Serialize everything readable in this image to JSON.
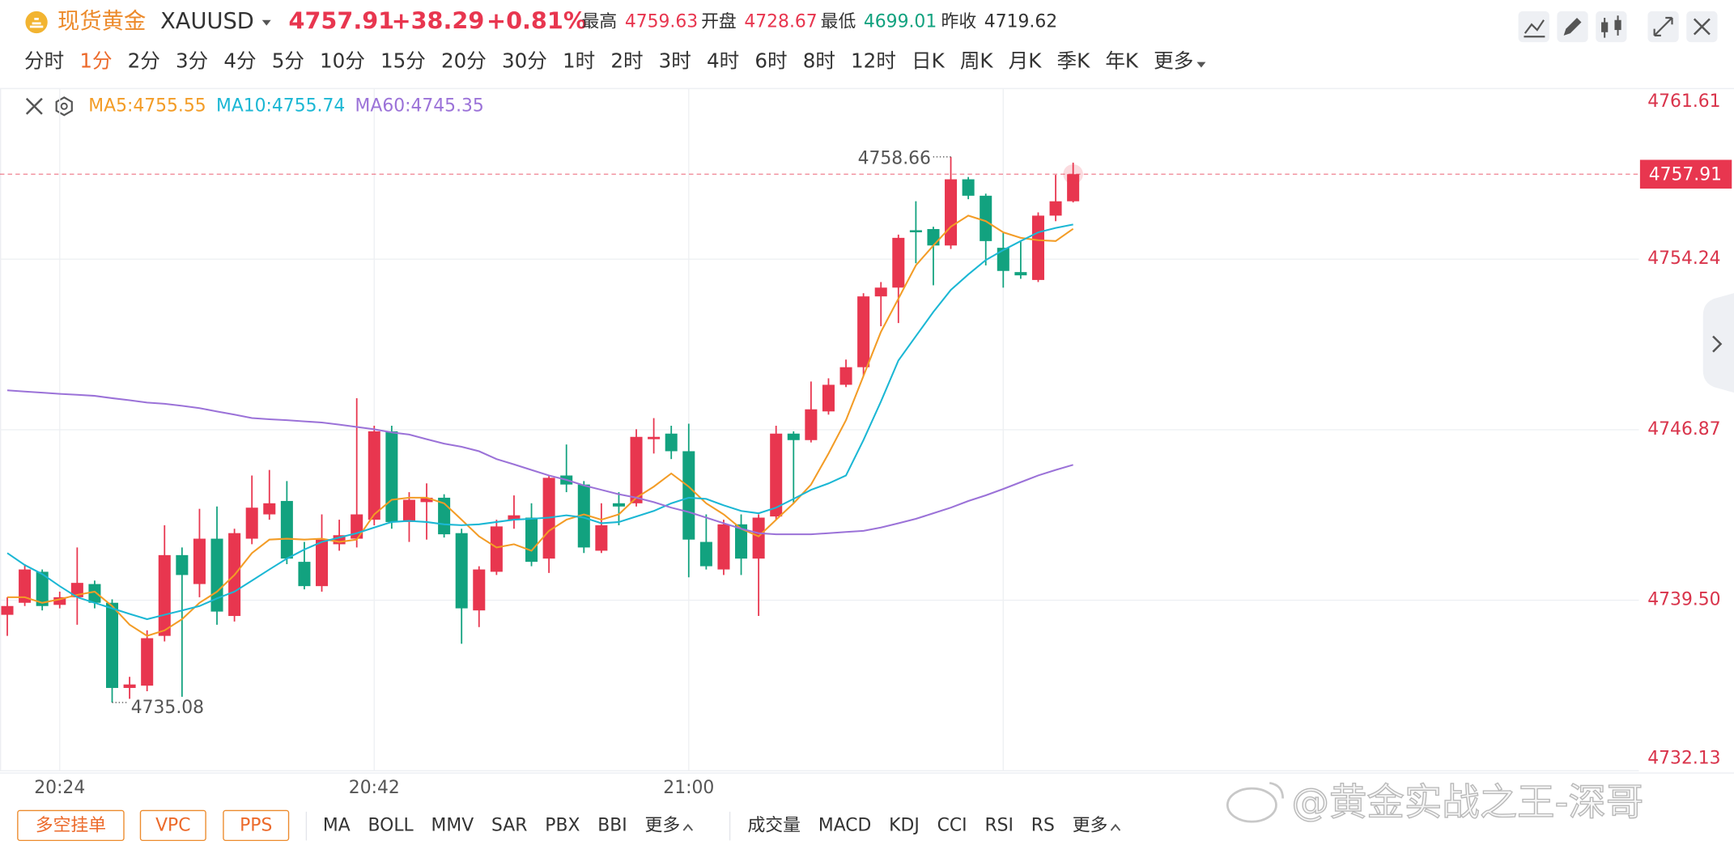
{
  "header": {
    "name": "现货黄金",
    "symbol": "XAUUSD",
    "price": "4757.91",
    "change": "+38.29",
    "change_pct": "+0.81%",
    "stats": [
      {
        "label": "最高",
        "value": "4759.63"
      },
      {
        "label": "开盘",
        "value": "4728.67"
      },
      {
        "label": "最低",
        "value": "4699.01"
      },
      {
        "label": "昨收",
        "value": "4719.62"
      }
    ]
  },
  "periods": [
    "分时",
    "1分",
    "2分",
    "3分",
    "4分",
    "5分",
    "10分",
    "15分",
    "20分",
    "30分",
    "1时",
    "2时",
    "3时",
    "4时",
    "6时",
    "8时",
    "12时",
    "日K",
    "周K",
    "月K",
    "季K",
    "年K",
    "更多"
  ],
  "selected_period": "1分",
  "overlay_buttons": [
    "多空挂单",
    "VPC",
    "PPS"
  ],
  "main_indicators": [
    "MA",
    "BOLL",
    "MMV",
    "SAR",
    "PBX",
    "BBI",
    "更多"
  ],
  "sub_indicators": [
    "成交量",
    "MACD",
    "KDJ",
    "CCI",
    "RSI",
    "RS",
    "更多"
  ],
  "watermark": "@黄金实战之王-深哥",
  "chart_data": {
    "type": "candlestick",
    "categories": [
      null,
      null,
      null,
      "20:24",
      null,
      null,
      null,
      null,
      null,
      null,
      null,
      null,
      null,
      null,
      null,
      null,
      null,
      null,
      null,
      null,
      null,
      "20:42",
      null,
      null,
      null,
      null,
      null,
      null,
      null,
      null,
      null,
      null,
      null,
      null,
      null,
      null,
      null,
      null,
      null,
      "21:00",
      null,
      null,
      null,
      null,
      null,
      null,
      null,
      null,
      null,
      null,
      null,
      null,
      null,
      null,
      null,
      null,
      null,
      null,
      null,
      null,
      null,
      null
    ],
    "open": [
      4738.87,
      4739.39,
      4740.73,
      4739.3,
      4739.63,
      4740.2,
      4739.39,
      4735.71,
      4735.81,
      4737.96,
      4741.45,
      4740.2,
      4742.16,
      4738.82,
      4742.16,
      4743.21,
      4743.79,
      4741.16,
      4740.11,
      4741.92,
      4742.16,
      4742.98,
      4746.8,
      4742.88,
      4743.74,
      4743.93,
      4742.4,
      4739.06,
      4740.73,
      4742.98,
      4743.07,
      4741.3,
      4744.89,
      4744.5,
      4741.64,
      4743.69,
      4743.69,
      4746.46,
      4746.7,
      4745.94,
      4742.02,
      4740.83,
      4742.78,
      4741.3,
      4743.12,
      4746.7,
      4746.42,
      4747.66,
      4748.81,
      4749.57,
      4752.63,
      4753.01,
      4755.49,
      4755.54,
      4754.83,
      4757.69,
      4756.98,
      4754.73,
      4753.68,
      4753.34,
      4756.12,
      4756.74
    ],
    "high": [
      4739.63,
      4741.06,
      4740.83,
      4739.87,
      4741.78,
      4740.35,
      4739.54,
      4736.19,
      4738.2,
      4742.74,
      4741.78,
      4743.45,
      4743.55,
      4742.59,
      4744.89,
      4745.13,
      4744.65,
      4742.02,
      4743.21,
      4742.98,
      4748.23,
      4747.04,
      4747.04,
      4744.17,
      4744.55,
      4744.08,
      4742.59,
      4740.97,
      4742.98,
      4744.03,
      4743.69,
      4744.89,
      4746.23,
      4744.65,
      4743.69,
      4744.17,
      4746.89,
      4747.37,
      4747.04,
      4747.13,
      4743.21,
      4742.98,
      4743.21,
      4743.21,
      4747.04,
      4746.8,
      4748.95,
      4749.09,
      4749.9,
      4752.77,
      4753.25,
      4755.3,
      4756.74,
      4755.64,
      4758.66,
      4757.79,
      4757.07,
      4755.4,
      4755.02,
      4756.26,
      4757.88,
      4758.41
    ],
    "low": [
      4737.96,
      4739.25,
      4739.06,
      4739.15,
      4738.44,
      4739.15,
      4735.08,
      4735.24,
      4735.57,
      4737.72,
      4735.33,
      4739.63,
      4738.44,
      4738.58,
      4741.92,
      4742.98,
      4741.06,
      4739.97,
      4739.87,
      4741.64,
      4741.78,
      4742.74,
      4742.59,
      4742.02,
      4742.12,
      4742.21,
      4737.62,
      4738.34,
      4740.59,
      4742.59,
      4740.97,
      4740.68,
      4744.17,
      4741.54,
      4741.54,
      4742.74,
      4743.55,
      4745.84,
      4745.6,
      4740.49,
      4740.83,
      4740.59,
      4740.59,
      4738.82,
      4742.98,
      4743.69,
      4746.32,
      4747.52,
      4748.71,
      4749.19,
      4751.34,
      4751.48,
      4754.06,
      4753.11,
      4754.68,
      4756.83,
      4753.97,
      4753.01,
      4753.39,
      4753.25,
      4755.88,
      4756.69
    ],
    "close": [
      4739.25,
      4740.83,
      4739.25,
      4739.63,
      4740.25,
      4739.39,
      4735.71,
      4735.86,
      4737.86,
      4741.45,
      4740.59,
      4742.16,
      4739.01,
      4742.4,
      4743.5,
      4743.69,
      4741.3,
      4740.11,
      4742.12,
      4742.31,
      4743.21,
      4746.8,
      4742.88,
      4743.84,
      4743.93,
      4742.35,
      4739.15,
      4740.83,
      4742.69,
      4743.17,
      4741.16,
      4744.79,
      4744.5,
      4741.78,
      4742.74,
      4743.55,
      4746.56,
      4746.56,
      4745.94,
      4742.12,
      4740.97,
      4742.78,
      4741.3,
      4743.07,
      4746.7,
      4746.42,
      4747.75,
      4748.81,
      4749.57,
      4752.63,
      4753.01,
      4755.16,
      4755.4,
      4754.83,
      4757.69,
      4756.98,
      4755.02,
      4753.73,
      4753.54,
      4756.12,
      4756.74,
      4757.91
    ],
    "up_color": "#e8364f",
    "down_color": "#12a27f",
    "series": [
      {
        "name": "MA5:4755.55",
        "color": "#f39c26",
        "values": [
          4739.63,
          4739.63,
          4739.39,
          4739.54,
          4739.73,
          4739.87,
          4739.25,
          4738.44,
          4737.96,
          4738.2,
          4738.68,
          4739.39,
          4739.87,
          4740.59,
          4741.54,
          4742.12,
          4742.16,
          4742.12,
          4742.16,
          4742.02,
          4742.12,
          4743.21,
          4743.84,
          4743.93,
          4743.93,
          4743.69,
          4742.98,
          4742.26,
          4741.78,
          4741.92,
          4741.64,
          4742.5,
          4742.98,
          4743.21,
          4742.98,
          4743.21,
          4743.93,
          4744.41,
          4744.98,
          4744.41,
          4743.69,
          4743.21,
          4742.59,
          4742.26,
          4742.98,
          4743.69,
          4744.5,
          4745.84,
          4747.28,
          4749.19,
          4751.1,
          4752.53,
          4753.97,
          4754.83,
          4755.64,
          4756.12,
          4755.88,
          4755.4,
          4755.16,
          4755.06,
          4755.02,
          4755.55
        ]
      },
      {
        "name": "MA10:4755.74",
        "color": "#1bb7d4",
        "values": [
          4741.54,
          4741.02,
          4740.63,
          4740.11,
          4739.63,
          4739.39,
          4739.15,
          4738.91,
          4738.68,
          4738.87,
          4739.06,
          4739.25,
          4739.58,
          4739.87,
          4740.35,
          4740.83,
          4741.3,
          4741.69,
          4742.02,
          4742.21,
          4742.4,
          4742.64,
          4742.88,
          4742.93,
          4742.88,
          4742.78,
          4742.74,
          4742.78,
          4742.88,
          4742.98,
          4743.02,
          4743.07,
          4743.17,
          4743.07,
          4742.83,
          4742.88,
          4743.12,
          4743.36,
          4743.69,
          4743.93,
          4743.88,
          4743.6,
          4743.36,
          4743.26,
          4743.5,
          4743.88,
          4744.27,
          4744.55,
          4744.89,
          4746.42,
          4748.09,
          4749.86,
          4750.91,
          4751.96,
          4752.91,
          4753.58,
          4754.2,
          4754.63,
          4755.02,
          4755.4,
          4755.59,
          4755.74
        ]
      },
      {
        "name": "MA60:4745.35",
        "color": "#9b72d8",
        "values": [
          4748.57,
          4748.52,
          4748.47,
          4748.42,
          4748.38,
          4748.33,
          4748.23,
          4748.14,
          4748.04,
          4747.99,
          4747.9,
          4747.8,
          4747.66,
          4747.52,
          4747.37,
          4747.32,
          4747.28,
          4747.23,
          4747.18,
          4747.09,
          4746.99,
          4746.89,
          4746.75,
          4746.66,
          4746.46,
          4746.27,
          4746.13,
          4745.94,
          4745.6,
          4745.37,
          4745.13,
          4744.89,
          4744.7,
          4744.46,
          4744.27,
          4744.08,
          4743.93,
          4743.74,
          4743.5,
          4743.31,
          4743.07,
          4742.83,
          4742.59,
          4742.4,
          4742.35,
          4742.35,
          4742.35,
          4742.4,
          4742.45,
          4742.5,
          4742.64,
          4742.83,
          4743.02,
          4743.26,
          4743.5,
          4743.79,
          4744.03,
          4744.31,
          4744.6,
          4744.89,
          4745.13,
          4745.35
        ]
      }
    ],
    "ylim": [
      4732.13,
      4761.61
    ],
    "yticks": [
      4732.13,
      {
        "value": 4739.5,
        "label": "4739.50"
      },
      4746.87,
      4754.24,
      4761.61
    ],
    "grid": true
  }
}
